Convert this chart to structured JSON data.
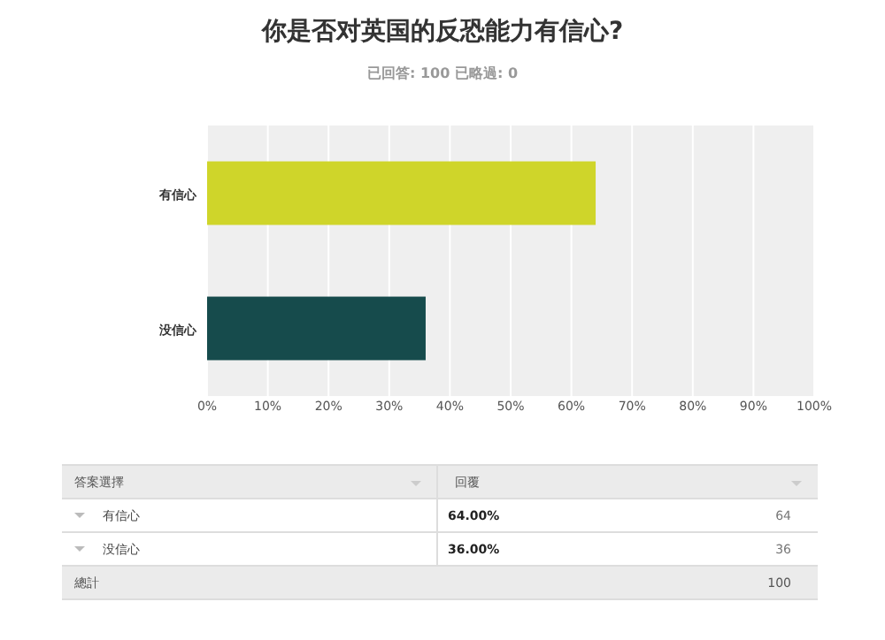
{
  "chart_data": {
    "type": "bar",
    "orientation": "horizontal",
    "title": "你是否对英国的反恐能力有信心?",
    "subtitle": "已回答:  100     已略過:  0",
    "categories": [
      "有信心",
      "没信心"
    ],
    "values": [
      64,
      36
    ],
    "colors": [
      "#cfd52a",
      "#164b4c"
    ],
    "xlim": [
      0,
      100
    ],
    "xticks": [
      {
        "value": 0,
        "label": "0%"
      },
      {
        "value": 10,
        "label": "10%"
      },
      {
        "value": 20,
        "label": "20%"
      },
      {
        "value": 30,
        "label": "30%"
      },
      {
        "value": 40,
        "label": "40%"
      },
      {
        "value": 50,
        "label": "50%"
      },
      {
        "value": 60,
        "label": "60%"
      },
      {
        "value": 70,
        "label": "70%"
      },
      {
        "value": 80,
        "label": "80%"
      },
      {
        "value": 90,
        "label": "90%"
      },
      {
        "value": 100,
        "label": "100%"
      }
    ],
    "grid": "x",
    "annotations": [
      "答案選擇",
      "回覆",
      "64.00%",
      "36.00%",
      "64",
      "36",
      "總計",
      "100"
    ]
  }
}
